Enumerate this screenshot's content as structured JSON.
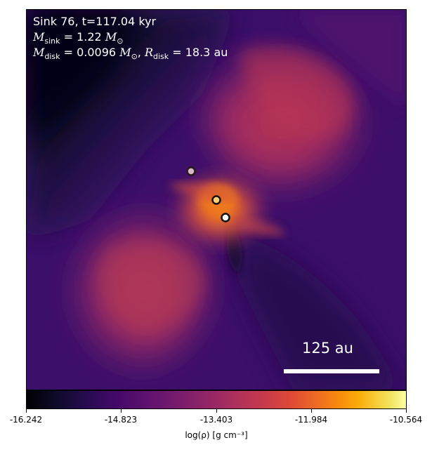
{
  "annotations": {
    "title": "Sink 76, t=117.04 kyr",
    "mass_sym": "M",
    "mass_sub": "sink",
    "mass_val": " = 1.22 ",
    "mass_unit": "M",
    "mass_unit_sub": "⊙",
    "disk_mass_sym": "M",
    "disk_mass_sub": "disk",
    "disk_mass_val": " = 0.0096 ",
    "disk_mass_unit": "M",
    "disk_mass_unit_sub": "⊙",
    "disk_sep": ", ",
    "disk_r_sym": "R",
    "disk_r_sub": "disk",
    "disk_r_val": " = 18.3 au"
  },
  "scale_bar": {
    "label": "125 au"
  },
  "colorbar": {
    "colormap": "inferno",
    "ticks": [
      "-16.242",
      "-14.823",
      "-13.403",
      "-11.984",
      "-10.564"
    ],
    "label": "log(ρ) [g cm⁻³]"
  },
  "sinks": [
    {
      "fill": "#d9b8c8"
    },
    {
      "fill": "#ffd27a"
    },
    {
      "fill": "#ffffff"
    }
  ]
}
